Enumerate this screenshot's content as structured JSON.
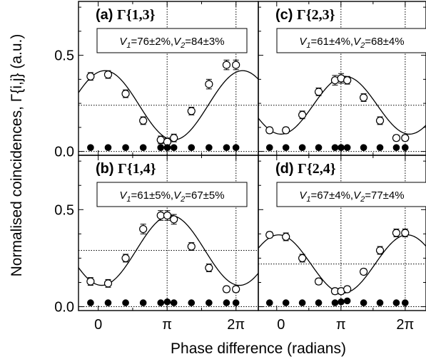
{
  "chart_data": {
    "type": "scatter",
    "xlabel": "Phase difference (radians)",
    "ylabel": "Normalised coincidences, Γ{i,j} (a.u.)",
    "x_ticks": [
      {
        "value": 0,
        "label": "0"
      },
      {
        "value": 3.14159,
        "label": "π"
      },
      {
        "value": 6.28319,
        "label": "2π"
      }
    ],
    "y_ticks": [
      {
        "value": 0.0,
        "label": "0.0"
      },
      {
        "value": 0.5,
        "label": "0.5"
      }
    ],
    "xlim": [
      -0.9,
      7.3
    ],
    "ylim": [
      -0.02,
      0.78
    ],
    "panels": [
      {
        "label_letter": "(a)",
        "label_gamma": "Γ{1,3}",
        "annotation": {
          "v1_value": "=76±2%,",
          "v2_value": "=84±3%"
        },
        "reference_line": 0.24,
        "fit": {
          "offset": 0.24,
          "amplitude": 0.18,
          "phase": 0.3
        },
        "series": [
          {
            "marker": "open-circle",
            "x": [
              -0.35,
              0.45,
              1.25,
              2.05,
              2.85,
              3.15,
              3.45,
              4.25,
              5.05,
              5.85,
              6.28
            ],
            "y": [
              0.39,
              0.4,
              0.3,
              0.16,
              0.06,
              0.05,
              0.07,
              0.21,
              0.35,
              0.45,
              0.45
            ],
            "err": [
              0.02,
              0.02,
              0.02,
              0.02,
              0.02,
              0.02,
              0.02,
              0.02,
              0.025,
              0.025,
              0.025
            ]
          },
          {
            "marker": "filled-circle",
            "x": [
              -0.35,
              0.45,
              1.25,
              2.05,
              2.85,
              3.15,
              3.45,
              4.25,
              5.05,
              5.85,
              6.28
            ],
            "y": [
              0.02,
              0.02,
              0.02,
              0.02,
              0.02,
              0.02,
              0.02,
              0.02,
              0.02,
              0.02,
              0.02
            ]
          }
        ]
      },
      {
        "label_letter": "(c)",
        "label_gamma": "Γ{2,3}",
        "annotation": {
          "v1_value": "=61±4%,",
          "v2_value": "=68±4%"
        },
        "reference_line": 0.24,
        "fit": {
          "offset": 0.24,
          "amplitude": 0.15,
          "phase": 3.35
        },
        "series": [
          {
            "marker": "open-circle",
            "x": [
              -0.35,
              0.45,
              1.25,
              2.05,
              2.85,
              3.15,
              3.45,
              4.25,
              5.05,
              5.85,
              6.28
            ],
            "y": [
              0.11,
              0.11,
              0.19,
              0.31,
              0.37,
              0.38,
              0.37,
              0.28,
              0.16,
              0.07,
              0.07
            ],
            "err": [
              0.015,
              0.015,
              0.02,
              0.02,
              0.025,
              0.025,
              0.02,
              0.02,
              0.02,
              0.015,
              0.015
            ]
          },
          {
            "marker": "filled-circle",
            "x": [
              -0.35,
              0.45,
              1.25,
              2.05,
              2.85,
              3.15,
              3.45,
              4.25,
              5.05,
              5.85,
              6.28
            ],
            "y": [
              0.02,
              0.02,
              0.02,
              0.02,
              0.02,
              0.02,
              0.02,
              0.02,
              0.02,
              0.02,
              0.02
            ]
          }
        ]
      },
      {
        "label_letter": "(b)",
        "label_gamma": "Γ{1,4}",
        "annotation": {
          "v1_value": "=61±5%,",
          "v2_value": "=67±5%"
        },
        "reference_line": 0.29,
        "fit": {
          "offset": 0.29,
          "amplitude": 0.18,
          "phase": 3.3
        },
        "series": [
          {
            "marker": "open-circle",
            "x": [
              -0.35,
              0.45,
              1.25,
              2.05,
              2.85,
              3.15,
              3.45,
              4.25,
              5.05,
              5.85,
              6.28
            ],
            "y": [
              0.13,
              0.12,
              0.25,
              0.4,
              0.47,
              0.47,
              0.45,
              0.31,
              0.2,
              0.09,
              0.09
            ],
            "err": [
              0.02,
              0.02,
              0.02,
              0.025,
              0.025,
              0.025,
              0.025,
              0.02,
              0.02,
              0.015,
              0.015
            ]
          },
          {
            "marker": "filled-circle",
            "x": [
              -0.35,
              0.45,
              1.25,
              2.05,
              2.85,
              3.15,
              3.45,
              4.25,
              5.05,
              5.85,
              6.28
            ],
            "y": [
              0.02,
              0.02,
              0.02,
              0.02,
              0.02,
              0.025,
              0.02,
              0.02,
              0.02,
              0.02,
              0.02
            ]
          }
        ]
      },
      {
        "label_letter": "(d)",
        "label_gamma": "Γ{2,4}",
        "annotation": {
          "v1_value": "=67±4%,",
          "v2_value": "=77±4%"
        },
        "reference_line": 0.22,
        "fit": {
          "offset": 0.22,
          "amplitude": 0.15,
          "phase": 0.1
        },
        "series": [
          {
            "marker": "open-circle",
            "x": [
              -0.35,
              0.45,
              1.25,
              2.05,
              2.85,
              3.15,
              3.45,
              4.25,
              5.05,
              5.85,
              6.28
            ],
            "y": [
              0.37,
              0.36,
              0.25,
              0.13,
              0.08,
              0.08,
              0.09,
              0.18,
              0.29,
              0.38,
              0.38
            ],
            "err": [
              0.015,
              0.02,
              0.02,
              0.015,
              0.015,
              0.015,
              0.015,
              0.015,
              0.02,
              0.02,
              0.02
            ]
          },
          {
            "marker": "filled-circle",
            "x": [
              -0.35,
              0.45,
              1.25,
              2.05,
              2.85,
              3.15,
              3.45,
              4.25,
              5.05,
              5.85,
              6.28
            ],
            "y": [
              0.02,
              0.02,
              0.02,
              0.02,
              0.02,
              0.025,
              0.03,
              0.02,
              0.02,
              0.02,
              0.02
            ]
          }
        ]
      }
    ]
  }
}
